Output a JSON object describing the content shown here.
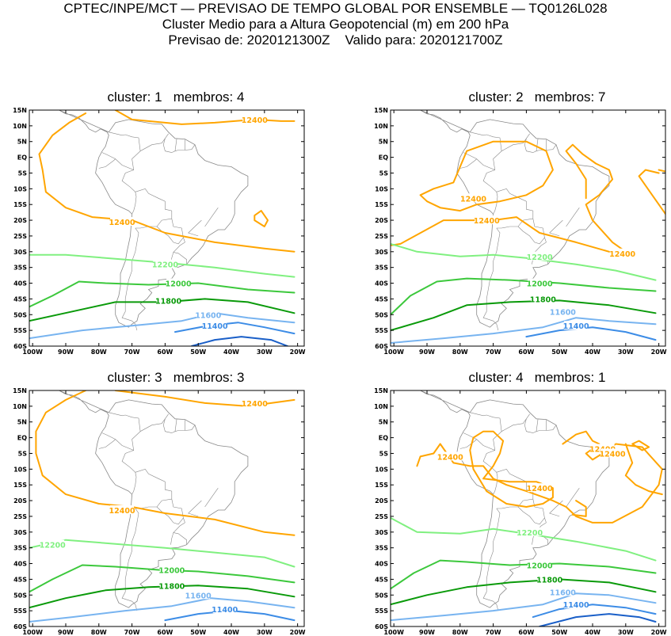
{
  "header": {
    "line1": "CPTEC/INPE/MCT — PREVISAO DE TEMPO GLOBAL POR ENSEMBLE — TQ0126L028",
    "line2": "Cluster Medio para a Altura Geopotencial (m) em 200 hPa",
    "line3": "Previsao de: 2020121300Z    Valido para: 2020121700Z"
  },
  "axes": {
    "lat_labels": [
      "15N",
      "10N",
      "5N",
      "EQ",
      "5S",
      "10S",
      "15S",
      "20S",
      "25S",
      "30S",
      "35S",
      "40S",
      "45S",
      "50S",
      "55S",
      "60S"
    ],
    "lon_labels": [
      "100W",
      "90W",
      "80W",
      "70W",
      "60W",
      "50W",
      "40W",
      "30W",
      "20W"
    ]
  },
  "colors": {
    "c12400": "#ffa500",
    "c12200": "#80f080",
    "c12000": "#3cc83c",
    "c11800": "#0a9a0a",
    "c11600": "#78b4f0",
    "c11400": "#3c8ce6",
    "c11200": "#1a5fc8",
    "coast": "#888888"
  },
  "panels": [
    {
      "title": "cluster: 1   membros: 4",
      "labels": [
        "12400",
        "12400",
        "12200",
        "12000",
        "11800",
        "11600",
        "11400"
      ]
    },
    {
      "title": "cluster: 2   membros: 7",
      "labels": [
        "12400",
        "12400",
        "12400",
        "12200",
        "12000",
        "11800",
        "11600",
        "11400"
      ]
    },
    {
      "title": "cluster: 3   membros: 3",
      "labels": [
        "12400",
        "12400",
        "12200",
        "12000",
        "11800",
        "11600",
        "11400"
      ]
    },
    {
      "title": "cluster: 4   membros: 1",
      "labels": [
        "12400",
        "12400",
        "12400",
        "12400",
        "12200",
        "12000",
        "11800",
        "11600",
        "11400"
      ]
    }
  ]
}
